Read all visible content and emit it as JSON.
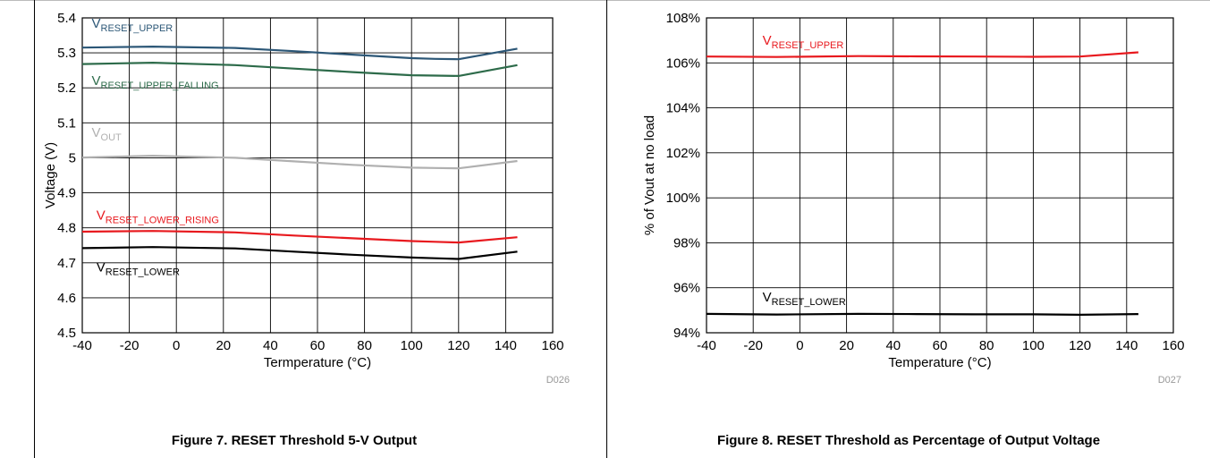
{
  "figures": [
    {
      "caption": "Figure 7. RESET Threshold 5-V Output",
      "chart_data": {
        "type": "line",
        "title": "",
        "xlabel": "Termperature (°C)",
        "ylabel": "Voltage (V)",
        "xlim": [
          -40,
          160
        ],
        "ylim": [
          4.5,
          5.4
        ],
        "xticks": [
          -40,
          -20,
          0,
          20,
          40,
          60,
          80,
          100,
          120,
          140,
          160
        ],
        "yticks": [
          4.5,
          4.6,
          4.7,
          4.8,
          4.9,
          5,
          5.1,
          5.2,
          5.3,
          5.4
        ],
        "xtick_labels": [
          "-40",
          "-20",
          "0",
          "20",
          "40",
          "60",
          "80",
          "100",
          "120",
          "140",
          "160"
        ],
        "ytick_labels": [
          "4.5",
          "4.6",
          "4.7",
          "4.8",
          "4.9",
          "5",
          "5.1",
          "5.2",
          "5.3",
          "5.4"
        ],
        "grid": true,
        "code": "D026",
        "series": [
          {
            "name": "V_RESET_UPPER",
            "label_main": "V",
            "label_sub": "RESET_UPPER",
            "color": "#2c5777",
            "label_at": [
              -36,
              5.372
            ],
            "x": [
              -40,
              -10,
              25,
              50,
              75,
              100,
              110,
              120,
              145
            ],
            "y": [
              5.315,
              5.318,
              5.314,
              5.305,
              5.295,
              5.285,
              5.283,
              5.282,
              5.312
            ]
          },
          {
            "name": "V_RESET_UPPER_FALLING",
            "label_main": "V",
            "label_sub": "RESET_UPPER_FALLING",
            "color": "#2d6b4a",
            "label_at": [
              -36,
              5.208
            ],
            "x": [
              -40,
              -10,
              25,
              50,
              75,
              100,
              110,
              120,
              145
            ],
            "y": [
              5.268,
              5.272,
              5.265,
              5.255,
              5.245,
              5.236,
              5.235,
              5.234,
              5.265
            ]
          },
          {
            "name": "V_OUT",
            "label_main": "V",
            "label_sub": "OUT",
            "color": "#b0b0b0",
            "label_at": [
              -36,
              5.06
            ],
            "x": [
              -40,
              -10,
              25,
              50,
              75,
              100,
              110,
              120,
              145
            ],
            "y": [
              5.001,
              5.006,
              5.0,
              4.99,
              4.98,
              4.972,
              4.971,
              4.97,
              4.991
            ]
          },
          {
            "name": "V_RESET_LOWER_RISING",
            "label_main": "V",
            "label_sub": "RESET_LOWER_RISING",
            "color": "#e8191e",
            "label_at": [
              -34,
              4.823
            ],
            "x": [
              -40,
              -10,
              25,
              50,
              75,
              100,
              110,
              120,
              145
            ],
            "y": [
              4.789,
              4.791,
              4.787,
              4.778,
              4.77,
              4.762,
              4.76,
              4.758,
              4.773
            ]
          },
          {
            "name": "V_RESET_LOWER",
            "label_main": "V",
            "label_sub": "RESET_LOWER",
            "color": "#000000",
            "label_at": [
              -34,
              4.675
            ],
            "x": [
              -40,
              -10,
              25,
              50,
              75,
              100,
              110,
              120,
              145
            ],
            "y": [
              4.742,
              4.745,
              4.741,
              4.732,
              4.723,
              4.715,
              4.713,
              4.711,
              4.732
            ]
          }
        ]
      }
    },
    {
      "caption": "Figure 8. RESET Threshold as Percentage of Output Voltage",
      "chart_data": {
        "type": "line",
        "title": "",
        "xlabel": "Temperature (°C)",
        "ylabel": "% of Vout at no load",
        "xlim": [
          -40,
          160
        ],
        "ylim": [
          94,
          108
        ],
        "xticks": [
          -40,
          -20,
          0,
          20,
          40,
          60,
          80,
          100,
          120,
          140,
          160
        ],
        "yticks": [
          94,
          96,
          98,
          100,
          102,
          104,
          106,
          108
        ],
        "xtick_labels": [
          "-40",
          "-20",
          "0",
          "20",
          "40",
          "60",
          "80",
          "100",
          "120",
          "140",
          "160"
        ],
        "ytick_labels": [
          "94%",
          "96%",
          "98%",
          "100%",
          "102%",
          "104%",
          "106%",
          "108%"
        ],
        "grid": true,
        "code": "D027",
        "series": [
          {
            "name": "V_RESET_UPPER",
            "label_main": "V",
            "label_sub": "RESET_UPPER",
            "color": "#e8191e",
            "label_at": [
              -16,
              106.8
            ],
            "x": [
              -40,
              -10,
              25,
              50,
              75,
              100,
              120,
              145
            ],
            "y": [
              106.28,
              106.26,
              106.3,
              106.29,
              106.28,
              106.27,
              106.28,
              106.47
            ]
          },
          {
            "name": "V_RESET_LOWER",
            "label_main": "V",
            "label_sub": "RESET_LOWER",
            "color": "#000000",
            "label_at": [
              -16,
              95.4
            ],
            "x": [
              -40,
              -10,
              25,
              50,
              75,
              100,
              120,
              145
            ],
            "y": [
              94.84,
              94.81,
              94.84,
              94.83,
              94.82,
              94.82,
              94.8,
              94.83
            ]
          }
        ]
      }
    }
  ]
}
